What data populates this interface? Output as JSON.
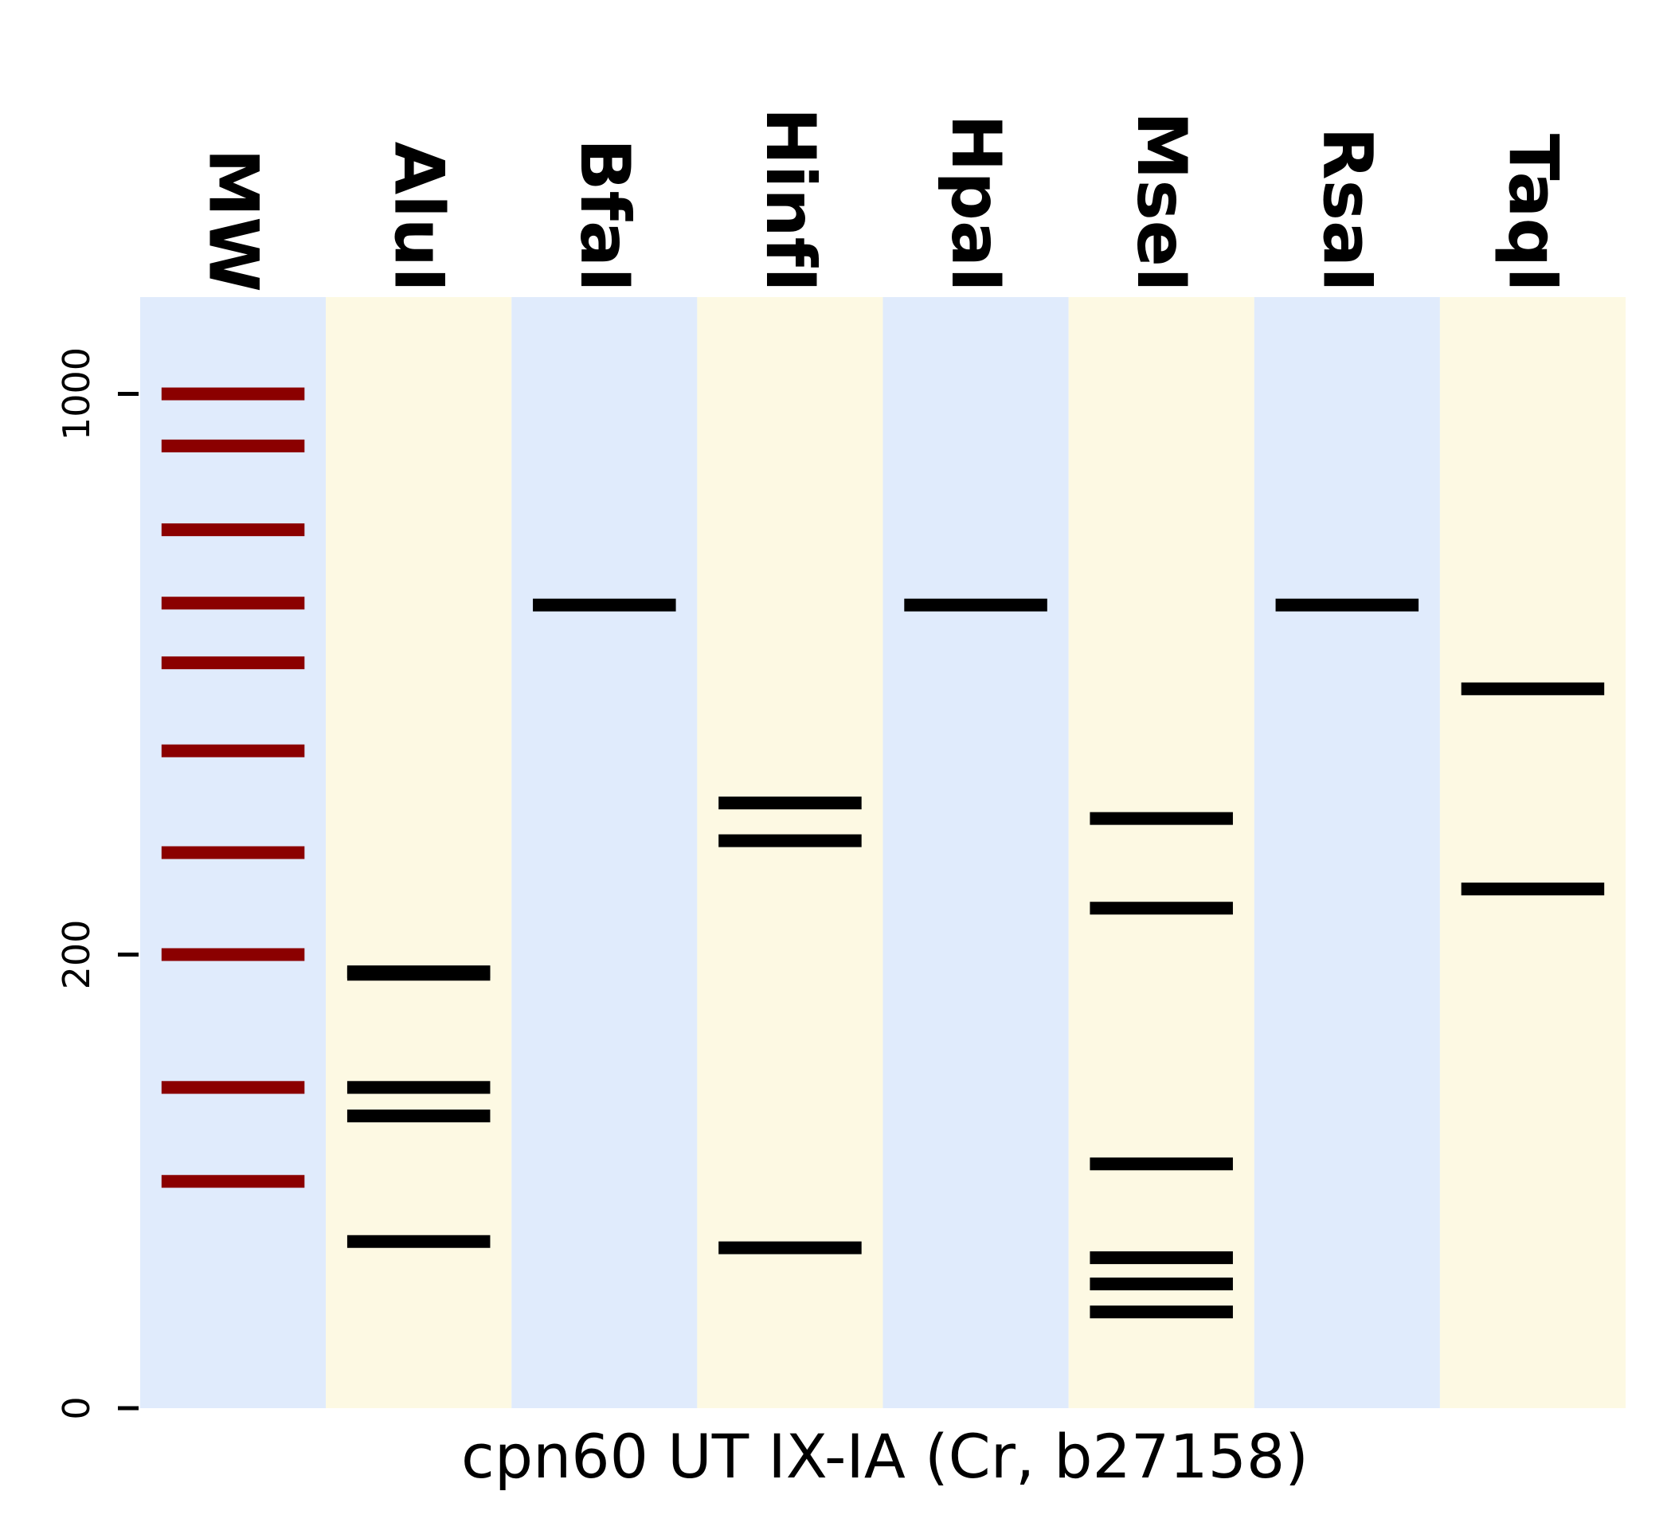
{
  "chart_data": {
    "type": "gel",
    "title": "",
    "xlabel": "cpn60 UT IX-IA (Cr, b27158)",
    "ylabel": "",
    "y_scale": "sqrt",
    "ylim": [
      0,
      1200
    ],
    "y_ticks": [
      {
        "value": 0,
        "label": "0"
      },
      {
        "value": 200,
        "label": "200"
      },
      {
        "value": 1000,
        "label": "1000"
      }
    ],
    "lane_colors": [
      "#e0ebfc",
      "#fdf9e3"
    ],
    "marker_color": "#8b0000",
    "band_color": "#000000",
    "lanes": [
      {
        "name": "MW",
        "marker": true,
        "bands": [
          1000,
          900,
          750,
          630,
          540,
          420,
          300,
          200,
          100,
          50
        ]
      },
      {
        "name": "AluI",
        "marker": false,
        "bands": [
          185,
          185,
          183,
          100,
          83,
          27
        ]
      },
      {
        "name": "BfaI",
        "marker": false,
        "bands": [
          627
        ]
      },
      {
        "name": "HinfI",
        "marker": false,
        "bands": [
          356,
          313,
          25
        ]
      },
      {
        "name": "HpaI",
        "marker": false,
        "bands": [
          627
        ]
      },
      {
        "name": "MseI",
        "marker": false,
        "bands": [
          338,
          243,
          58,
          22,
          15,
          9
        ]
      },
      {
        "name": "RsaI",
        "marker": false,
        "bands": [
          627
        ]
      },
      {
        "name": "TaqI",
        "marker": false,
        "bands": [
          503,
          262
        ]
      }
    ]
  }
}
